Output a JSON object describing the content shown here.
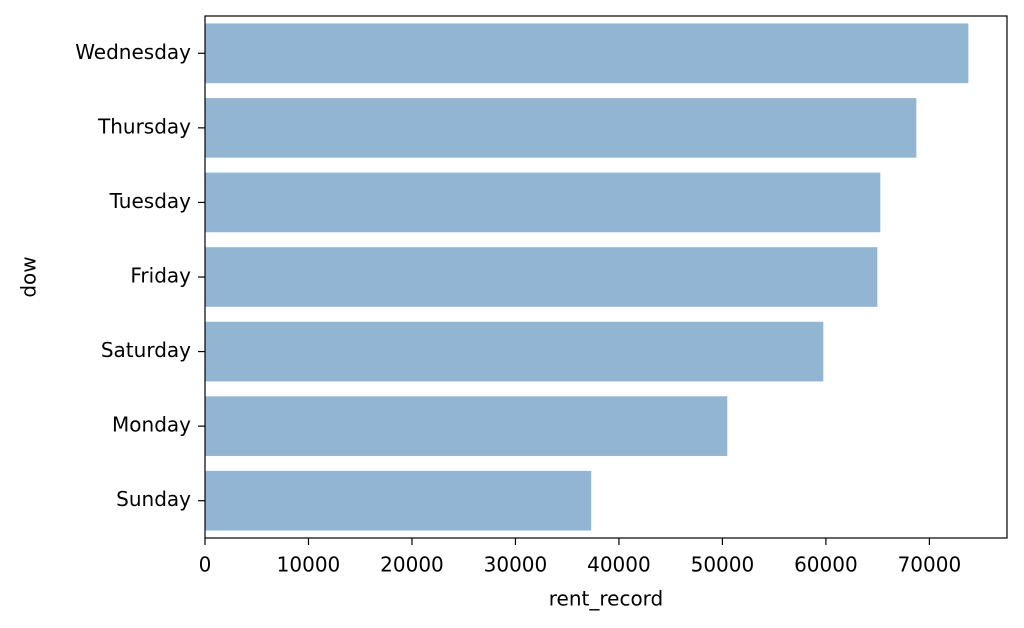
{
  "chart_data": {
    "type": "hbar",
    "x_label": "rent_record",
    "y_label": "dow",
    "categories": [
      "Wednesday",
      "Thursday",
      "Tuesday",
      "Friday",
      "Saturday",
      "Monday",
      "Sunday"
    ],
    "values": [
      73770,
      68740,
      65260,
      64970,
      59750,
      50470,
      37320
    ],
    "color": "#93b5d4",
    "xlim": [
      0,
      77500
    ],
    "xticks": [
      0,
      10000,
      20000,
      30000,
      40000,
      50000,
      60000,
      70000
    ]
  }
}
